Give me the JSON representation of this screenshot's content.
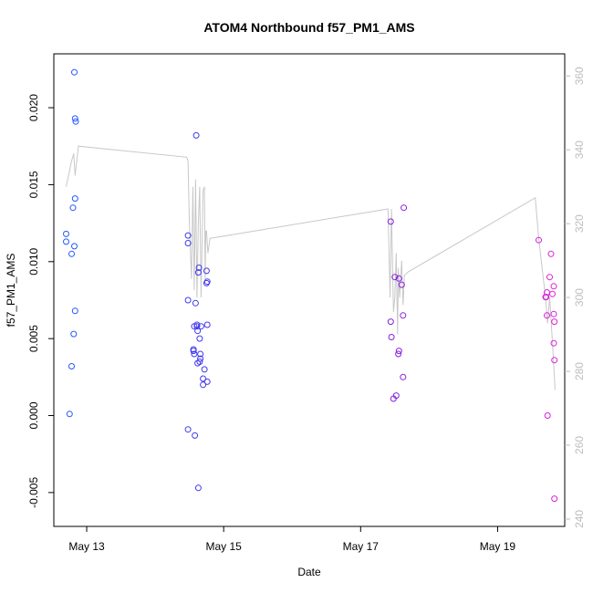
{
  "chart_data": {
    "type": "scatter",
    "title": "ATOM4 Northbound f57_PM1_AMS",
    "xlabel": "Date",
    "ylabel": "f57_PM1_AMS",
    "x_unit": "day of May",
    "xlim": [
      12.52,
      19.98
    ],
    "ylim": [
      -0.0072,
      0.0235
    ],
    "y_ticks": [
      -0.005,
      0.0,
      0.005,
      0.01,
      0.015,
      0.02
    ],
    "y_tick_labels": [
      "-0.005",
      "0.000",
      "0.005",
      "0.010",
      "0.015",
      "0.020"
    ],
    "x_ticks": [
      13,
      15,
      17,
      19
    ],
    "x_tick_labels": [
      "May 13",
      "May 15",
      "May 17",
      "May 19"
    ],
    "y2lim": [
      238,
      366
    ],
    "y2_ticks": [
      240,
      260,
      280,
      300,
      320,
      340,
      360
    ],
    "y2_tick_labels": [
      "240",
      "260",
      "280",
      "300",
      "320",
      "340",
      "360"
    ],
    "grid": false,
    "legend": "none",
    "colors": {
      "gradient_start": "#1e5cff",
      "gradient_mid": "#5a1fe0",
      "gradient_end": "#e020d8",
      "secondary_line": "#c8c8c8",
      "axis": "#000000",
      "right_axis": "#bdbdbd"
    },
    "series": [
      {
        "marker": "open-circle",
        "points": [
          [
            12.7,
            0.0118
          ],
          [
            12.7,
            0.0113
          ],
          [
            12.75,
            0.0001
          ],
          [
            12.78,
            0.0105
          ],
          [
            12.78,
            0.0032
          ],
          [
            12.8,
            0.0135
          ],
          [
            12.81,
            0.0053
          ],
          [
            12.82,
            0.0223
          ],
          [
            12.82,
            0.011
          ],
          [
            12.83,
            0.0193
          ],
          [
            12.84,
            0.0191
          ],
          [
            12.83,
            0.0141
          ],
          [
            12.83,
            0.0068
          ],
          [
            14.48,
            0.0117
          ],
          [
            14.48,
            0.0112
          ],
          [
            14.48,
            0.0075
          ],
          [
            14.48,
            -0.0009
          ],
          [
            14.56,
            0.0042
          ],
          [
            14.56,
            0.0043
          ],
          [
            14.57,
            0.0058
          ],
          [
            14.57,
            0.004
          ],
          [
            14.58,
            -0.0013
          ],
          [
            14.59,
            0.0073
          ],
          [
            14.6,
            0.0182
          ],
          [
            14.61,
            0.0059
          ],
          [
            14.61,
            0.0058
          ],
          [
            14.62,
            0.0055
          ],
          [
            14.62,
            0.0034
          ],
          [
            14.63,
            -0.0047
          ],
          [
            14.63,
            0.0093
          ],
          [
            14.64,
            0.0096
          ],
          [
            14.65,
            0.005
          ],
          [
            14.65,
            0.0035
          ],
          [
            14.66,
            0.0037
          ],
          [
            14.66,
            0.004
          ],
          [
            14.67,
            0.0058
          ],
          [
            14.7,
            0.0024
          ],
          [
            14.7,
            0.002
          ],
          [
            14.72,
            0.003
          ],
          [
            14.75,
            0.0094
          ],
          [
            14.75,
            0.0086
          ],
          [
            14.76,
            0.0087
          ],
          [
            14.76,
            0.0059
          ],
          [
            14.76,
            0.0022
          ],
          [
            17.44,
            0.0126
          ],
          [
            17.44,
            0.0061
          ],
          [
            17.45,
            0.0051
          ],
          [
            17.5,
            0.009
          ],
          [
            17.48,
            0.0011
          ],
          [
            17.52,
            0.0013
          ],
          [
            17.55,
            0.004
          ],
          [
            17.56,
            0.0042
          ],
          [
            17.56,
            0.0089
          ],
          [
            17.6,
            0.0085
          ],
          [
            17.62,
            0.0025
          ],
          [
            17.62,
            0.0065
          ],
          [
            17.63,
            0.0135
          ],
          [
            19.6,
            0.0114
          ],
          [
            19.7,
            0.0077
          ],
          [
            19.71,
            0.0077
          ],
          [
            19.72,
            0.0065
          ],
          [
            19.72,
            0.008
          ],
          [
            19.73,
            0.0
          ],
          [
            19.76,
            0.009
          ],
          [
            19.78,
            0.0105
          ],
          [
            19.8,
            0.0079
          ],
          [
            19.82,
            0.0084
          ],
          [
            19.82,
            0.0047
          ],
          [
            19.82,
            0.0066
          ],
          [
            19.83,
            0.0061
          ],
          [
            19.83,
            0.0036
          ],
          [
            19.83,
            -0.0054
          ]
        ]
      },
      {
        "style": "line",
        "axis": "right",
        "points": [
          [
            12.7,
            330
          ],
          [
            12.78,
            337
          ],
          [
            12.81,
            339
          ],
          [
            12.83,
            333
          ],
          [
            12.88,
            341
          ],
          [
            14.46,
            338
          ],
          [
            14.48,
            337
          ],
          [
            14.5,
            320
          ],
          [
            14.53,
            305
          ],
          [
            14.55,
            330
          ],
          [
            14.57,
            302
          ],
          [
            14.59,
            332
          ],
          [
            14.61,
            300
          ],
          [
            14.63,
            320
          ],
          [
            14.65,
            330
          ],
          [
            14.67,
            300
          ],
          [
            14.7,
            329
          ],
          [
            14.72,
            330
          ],
          [
            14.73,
            305
          ],
          [
            14.74,
            318
          ],
          [
            14.75,
            318
          ],
          [
            14.77,
            312
          ],
          [
            14.8,
            316
          ],
          [
            17.4,
            324
          ],
          [
            17.43,
            300
          ],
          [
            17.45,
            324
          ],
          [
            17.48,
            296
          ],
          [
            17.5,
            300
          ],
          [
            17.52,
            312
          ],
          [
            17.54,
            290
          ],
          [
            17.55,
            308
          ],
          [
            17.57,
            300
          ],
          [
            17.6,
            310
          ],
          [
            17.62,
            298
          ],
          [
            17.64,
            306
          ],
          [
            17.7,
            307
          ],
          [
            19.55,
            327
          ],
          [
            19.6,
            316
          ],
          [
            19.65,
            308
          ],
          [
            19.7,
            300
          ],
          [
            19.73,
            293
          ],
          [
            19.76,
            300
          ],
          [
            19.8,
            288
          ],
          [
            19.84,
            275
          ]
        ]
      }
    ]
  }
}
